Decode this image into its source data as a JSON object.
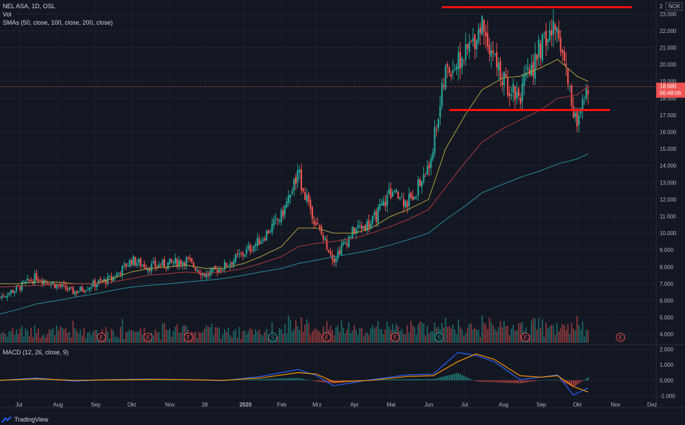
{
  "header": {
    "symbol_line": "NEL ASA, 1D, OSL",
    "volume_label": "Vol",
    "sma_label": "SMAs (50, close, 100, close, 200, close)",
    "macd_label": "MACD (12, 26, close, 9)"
  },
  "price_axis": {
    "currency": "NOK",
    "top_tick": "2",
    "ticks": [
      "23.000",
      "22.000",
      "21.000",
      "20.000",
      "19.000",
      "18.000",
      "17.000",
      "16.000",
      "15.000",
      "14.000",
      "13.000",
      "12.000",
      "11.000",
      "10.000",
      "9.000",
      "8.000",
      "7.000",
      "6.000",
      "5.000",
      "4.000"
    ],
    "last_price": "18.680",
    "countdown": "06:48:06"
  },
  "macd_axis": {
    "ticks": [
      "2.000",
      "1.000",
      "0.000",
      "-1.000"
    ]
  },
  "time_axis": {
    "labels": [
      "Jul",
      "Aug",
      "Sep",
      "Okt",
      "Nov",
      "28",
      "2020",
      "Feb",
      "Mrz",
      "Apr",
      "Mai",
      "Jun",
      "Jul",
      "Aug",
      "Sep",
      "Okt",
      "Nov",
      "Dez"
    ]
  },
  "events": [
    "E",
    "E",
    "E",
    "S",
    "E",
    "E",
    "S",
    "E",
    "E"
  ],
  "brand": {
    "name": "TradingView"
  },
  "colors": {
    "background": "#131722",
    "up": "#26a69a",
    "down": "#ef5350",
    "sma50": "#b5a642",
    "sma100": "#b03a3a",
    "sma200": "#2a8fa0",
    "macd": "#2962ff",
    "signal": "#ff9800",
    "resistance_line": "#ff1111"
  },
  "chart_data": {
    "type": "candlestick",
    "x_start": "2019-06",
    "x_end": "2020-12",
    "ylim": [
      3.5,
      23.5
    ],
    "price": {
      "dates": [
        "2019-06-15",
        "2019-07-01",
        "2019-07-15",
        "2019-08-01",
        "2019-08-15",
        "2019-09-01",
        "2019-09-15",
        "2019-10-01",
        "2019-10-15",
        "2019-11-01",
        "2019-11-15",
        "2019-12-01",
        "2019-12-15",
        "2020-01-01",
        "2020-01-15",
        "2020-02-01",
        "2020-02-15",
        "2020-03-01",
        "2020-03-15",
        "2020-04-01",
        "2020-04-15",
        "2020-05-01",
        "2020-05-15",
        "2020-06-01",
        "2020-06-15",
        "2020-07-01",
        "2020-07-15",
        "2020-08-01",
        "2020-08-15",
        "2020-09-01",
        "2020-09-15",
        "2020-10-01",
        "2020-10-10"
      ],
      "close": [
        6.2,
        6.8,
        7.4,
        6.9,
        6.5,
        7.0,
        7.3,
        8.4,
        8.0,
        8.2,
        8.4,
        7.5,
        8.0,
        8.8,
        9.6,
        11.0,
        13.5,
        10.5,
        8.5,
        10.2,
        10.6,
        12.4,
        11.8,
        13.8,
        19.5,
        20.5,
        22.5,
        19.0,
        18.2,
        21.0,
        22.3,
        16.2,
        18.68
      ]
    },
    "sma50": [
      7.0,
      7.0,
      7.1,
      7.1,
      7.0,
      7.0,
      7.3,
      7.7,
      7.9,
      8.0,
      8.1,
      7.9,
      7.9,
      8.2,
      8.6,
      9.2,
      10.3,
      10.3,
      10.0,
      10.0,
      10.3,
      11.0,
      11.4,
      12.0,
      15.0,
      17.0,
      18.5,
      19.2,
      19.3,
      19.8,
      20.3,
      19.3,
      19.0
    ],
    "sma100": [
      6.8,
      6.85,
      6.9,
      6.95,
      7.0,
      7.0,
      7.1,
      7.3,
      7.5,
      7.6,
      7.7,
      7.6,
      7.7,
      7.9,
      8.2,
      8.6,
      9.2,
      9.4,
      9.5,
      9.7,
      10.0,
      10.4,
      10.8,
      11.4,
      12.7,
      14.2,
      15.4,
      16.2,
      16.7,
      17.3,
      18.0,
      18.2,
      18.7
    ],
    "sma200": [
      5.2,
      5.5,
      5.8,
      6.0,
      6.2,
      6.4,
      6.6,
      6.8,
      6.9,
      7.0,
      7.1,
      7.2,
      7.3,
      7.5,
      7.7,
      7.9,
      8.2,
      8.4,
      8.6,
      8.8,
      9.0,
      9.3,
      9.6,
      10.0,
      10.8,
      11.6,
      12.4,
      12.9,
      13.3,
      13.7,
      14.1,
      14.4,
      14.7
    ],
    "annotations": [
      {
        "type": "horizontal_line",
        "y": 23.4,
        "from": "2020-06-12",
        "to": "2020-11-15"
      },
      {
        "type": "horizontal_line",
        "y": 17.3,
        "from": "2020-06-18",
        "to": "2020-10-28"
      }
    ],
    "macd": {
      "ylim": [
        -1.2,
        2.2
      ],
      "dates": [
        "2019-06-15",
        "2019-07-15",
        "2019-08-15",
        "2019-09-15",
        "2019-10-15",
        "2019-11-15",
        "2019-12-15",
        "2020-01-15",
        "2020-02-15",
        "2020-03-01",
        "2020-03-15",
        "2020-04-15",
        "2020-05-15",
        "2020-06-05",
        "2020-06-25",
        "2020-07-10",
        "2020-07-25",
        "2020-08-15",
        "2020-09-01",
        "2020-09-15",
        "2020-09-28",
        "2020-10-10"
      ],
      "macd": [
        0.0,
        0.15,
        -0.05,
        0.05,
        0.08,
        0.05,
        -0.02,
        0.25,
        0.7,
        0.3,
        -0.35,
        0.05,
        0.35,
        0.4,
        1.8,
        1.6,
        1.2,
        0.05,
        0.2,
        0.35,
        -0.95,
        -0.5
      ],
      "signal": [
        0.0,
        0.1,
        0.0,
        0.03,
        0.06,
        0.05,
        0.0,
        0.15,
        0.5,
        0.4,
        -0.1,
        0.0,
        0.25,
        0.3,
        1.2,
        1.7,
        1.35,
        0.3,
        0.2,
        0.3,
        -0.4,
        -0.75
      ]
    }
  }
}
